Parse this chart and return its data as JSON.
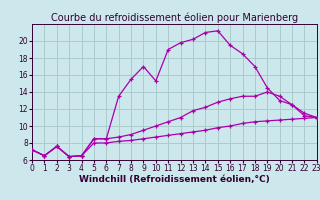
{
  "title": "Courbe du refroidissement éolien pour Marienberg",
  "xlabel": "Windchill (Refroidissement éolien,°C)",
  "background_color": "#cce8ec",
  "grid_color": "#aacccc",
  "line_color": "#aa00aa",
  "x_values": [
    0,
    1,
    2,
    3,
    4,
    5,
    6,
    7,
    8,
    9,
    10,
    11,
    12,
    13,
    14,
    15,
    16,
    17,
    18,
    19,
    20,
    21,
    22,
    23
  ],
  "curve1_y": [
    7.2,
    6.5,
    7.6,
    6.4,
    6.5,
    8.5,
    8.5,
    13.5,
    15.5,
    17.0,
    15.3,
    19.0,
    19.8,
    20.2,
    21.0,
    21.2,
    19.5,
    18.5,
    17.0,
    14.5,
    13.0,
    12.5,
    11.2,
    11.0
  ],
  "curve2_y": [
    7.2,
    6.5,
    7.6,
    6.4,
    6.5,
    8.5,
    8.5,
    8.7,
    9.0,
    9.5,
    10.0,
    10.5,
    11.0,
    11.8,
    12.2,
    12.8,
    13.2,
    13.5,
    13.5,
    14.0,
    13.5,
    12.5,
    11.5,
    11.0
  ],
  "curve3_y": [
    7.2,
    6.5,
    7.6,
    6.4,
    6.5,
    8.0,
    8.0,
    8.2,
    8.3,
    8.5,
    8.7,
    8.9,
    9.1,
    9.3,
    9.5,
    9.8,
    10.0,
    10.3,
    10.5,
    10.6,
    10.7,
    10.8,
    10.9,
    11.0
  ],
  "ylim": [
    6,
    22
  ],
  "xlim": [
    0,
    23
  ],
  "yticks": [
    6,
    8,
    10,
    12,
    14,
    16,
    18,
    20
  ],
  "xticks": [
    0,
    1,
    2,
    3,
    4,
    5,
    6,
    7,
    8,
    9,
    10,
    11,
    12,
    13,
    14,
    15,
    16,
    17,
    18,
    19,
    20,
    21,
    22,
    23
  ],
  "title_fontsize": 7,
  "xlabel_fontsize": 6.5,
  "tick_fontsize": 5.5
}
